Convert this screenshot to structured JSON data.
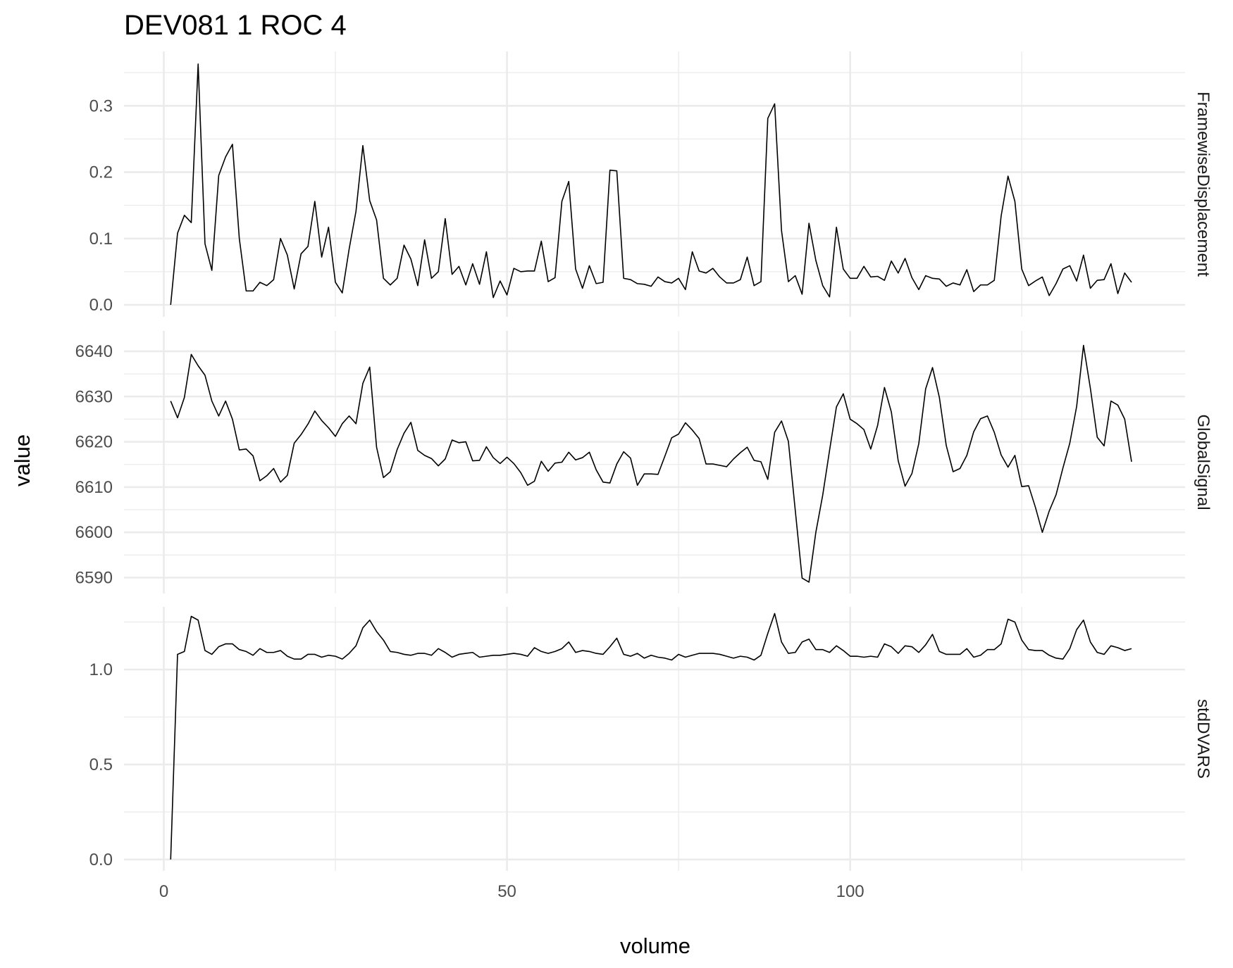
{
  "title": "DEV081  1  ROC  4",
  "chart_data": {
    "type": "line",
    "title": "DEV081  1  ROC  4",
    "xlabel": "volume",
    "ylabel": "value",
    "grid": true,
    "xlim": [
      -5.8,
      148.8
    ],
    "x_ticks": [
      0,
      50,
      100
    ],
    "x_tick_labels": [
      "0",
      "50",
      "100"
    ],
    "x_minor_ticks": [
      25,
      75,
      125
    ],
    "facets": [
      {
        "name": "FramewiseDisplacement",
        "ylim": [
          -0.018,
          0.382
        ],
        "y_ticks": [
          0,
          0.1,
          0.2,
          0.3
        ],
        "y_tick_labels": [
          "0.0",
          "0.1",
          "0.2",
          "0.3"
        ],
        "y_minor_ticks": [
          0.05,
          0.15,
          0.25,
          0.35
        ],
        "values": [
          0,
          0.108,
          0.135,
          0.124,
          0.363,
          0.092,
          0.052,
          0.195,
          0.223,
          0.242,
          0.1,
          0.021,
          0.021,
          0.034,
          0.029,
          0.038,
          0.1,
          0.075,
          0.024,
          0.077,
          0.088,
          0.156,
          0.072,
          0.117,
          0.034,
          0.018,
          0.084,
          0.141,
          0.24,
          0.157,
          0.128,
          0.04,
          0.03,
          0.04,
          0.09,
          0.069,
          0.029,
          0.098,
          0.04,
          0.05,
          0.13,
          0.046,
          0.058,
          0.03,
          0.062,
          0.031,
          0.08,
          0.011,
          0.036,
          0.015,
          0.055,
          0.05,
          0.051,
          0.051,
          0.096,
          0.035,
          0.041,
          0.156,
          0.186,
          0.054,
          0.025,
          0.059,
          0.032,
          0.034,
          0.203,
          0.202,
          0.04,
          0.038,
          0.032,
          0.031,
          0.028,
          0.042,
          0.035,
          0.033,
          0.04,
          0.023,
          0.08,
          0.051,
          0.048,
          0.055,
          0.042,
          0.033,
          0.033,
          0.038,
          0.072,
          0.029,
          0.035,
          0.281,
          0.303,
          0.112,
          0.035,
          0.044,
          0.016,
          0.123,
          0.067,
          0.029,
          0.012,
          0.117,
          0.054,
          0.04,
          0.04,
          0.058,
          0.042,
          0.043,
          0.037,
          0.066,
          0.048,
          0.07,
          0.041,
          0.023,
          0.044,
          0.04,
          0.039,
          0.028,
          0.033,
          0.03,
          0.053,
          0.02,
          0.03,
          0.03,
          0.037,
          0.134,
          0.194,
          0.156,
          0.054,
          0.029,
          0.036,
          0.042,
          0.014,
          0.032,
          0.054,
          0.059,
          0.036,
          0.075,
          0.025,
          0.037,
          0.038,
          0.062,
          0.017,
          0.048,
          0.034
        ]
      },
      {
        "name": "GlobalSignal",
        "ylim": [
          6586.5,
          6644.5
        ],
        "y_ticks": [
          6590,
          6600,
          6610,
          6620,
          6630,
          6640
        ],
        "y_tick_labels": [
          "6590",
          "6600",
          "6610",
          "6620",
          "6630",
          "6640"
        ],
        "y_minor_ticks": [
          6595,
          6605,
          6615,
          6625,
          6635
        ],
        "values": [
          6629,
          6625.3,
          6629.8,
          6639.3,
          6636.8,
          6634.7,
          6629,
          6625.7,
          6629,
          6625,
          6618.2,
          6618.4,
          6616.9,
          6611.4,
          6612.5,
          6614.1,
          6611.1,
          6612.6,
          6619.7,
          6621.6,
          6623.9,
          6626.8,
          6624.7,
          6623.1,
          6621.2,
          6624,
          6625.7,
          6624,
          6632.9,
          6636.5,
          6618.8,
          6612.1,
          6613.4,
          6618.3,
          6621.9,
          6624.3,
          6618.1,
          6617,
          6616.3,
          6614.7,
          6616.2,
          6620.4,
          6619.8,
          6620,
          6615.8,
          6615.9,
          6618.9,
          6616.5,
          6615.2,
          6616.6,
          6615.2,
          6613.2,
          6610.4,
          6611.3,
          6615.7,
          6613.5,
          6615.3,
          6615.5,
          6617.7,
          6616,
          6616.5,
          6617.7,
          6613.8,
          6611.1,
          6610.9,
          6615.1,
          6617.8,
          6616.4,
          6610.4,
          6612.9,
          6612.9,
          6612.8,
          6616.8,
          6620.9,
          6621.7,
          6624.2,
          6622.6,
          6620.7,
          6615.1,
          6615.1,
          6614.8,
          6614.5,
          6616.2,
          6617.6,
          6618.8,
          6615.9,
          6615.6,
          6611.7,
          6622.1,
          6624.6,
          6620.1,
          6604.9,
          6589.9,
          6589,
          6600,
          6608.2,
          6618.1,
          6627.7,
          6630.6,
          6625,
          6624,
          6622.7,
          6618.4,
          6623.6,
          6632,
          6626.6,
          6615.8,
          6610.2,
          6613,
          6619.6,
          6631.7,
          6636.4,
          6629.8,
          6619.2,
          6613.4,
          6614.1,
          6617,
          6622.2,
          6625.1,
          6625.7,
          6622.1,
          6617.1,
          6614.4,
          6617,
          6610.1,
          6610.3,
          6605.5,
          6600,
          6604.7,
          6608.3,
          6614.2,
          6619.7,
          6627.8,
          6641.3,
          6631.8,
          6621,
          6619.1,
          6629,
          6628.1,
          6625,
          6615.6
        ]
      },
      {
        "name": "stdDVARS",
        "ylim": [
          -0.06,
          1.33
        ],
        "y_ticks": [
          0,
          0.5,
          1
        ],
        "y_tick_labels": [
          "0.0",
          "0.5",
          "1.0"
        ],
        "y_minor_ticks": [
          0.25,
          0.75,
          1.25
        ],
        "values": [
          0,
          1.08,
          1.095,
          1.28,
          1.26,
          1.1,
          1.08,
          1.12,
          1.135,
          1.135,
          1.105,
          1.095,
          1.075,
          1.11,
          1.09,
          1.09,
          1.1,
          1.07,
          1.055,
          1.055,
          1.08,
          1.08,
          1.065,
          1.075,
          1.07,
          1.055,
          1.085,
          1.125,
          1.22,
          1.26,
          1.2,
          1.155,
          1.095,
          1.09,
          1.08,
          1.075,
          1.085,
          1.085,
          1.075,
          1.11,
          1.09,
          1.065,
          1.08,
          1.085,
          1.09,
          1.065,
          1.07,
          1.075,
          1.075,
          1.08,
          1.085,
          1.08,
          1.07,
          1.115,
          1.095,
          1.085,
          1.095,
          1.11,
          1.145,
          1.09,
          1.1,
          1.095,
          1.085,
          1.08,
          1.12,
          1.165,
          1.08,
          1.07,
          1.085,
          1.06,
          1.075,
          1.065,
          1.06,
          1.05,
          1.08,
          1.065,
          1.075,
          1.085,
          1.085,
          1.085,
          1.08,
          1.07,
          1.06,
          1.07,
          1.065,
          1.05,
          1.075,
          1.19,
          1.295,
          1.145,
          1.085,
          1.09,
          1.145,
          1.16,
          1.105,
          1.105,
          1.09,
          1.125,
          1.1,
          1.07,
          1.07,
          1.065,
          1.07,
          1.065,
          1.135,
          1.12,
          1.085,
          1.125,
          1.12,
          1.09,
          1.13,
          1.185,
          1.095,
          1.08,
          1.08,
          1.08,
          1.11,
          1.065,
          1.075,
          1.105,
          1.105,
          1.135,
          1.265,
          1.25,
          1.155,
          1.105,
          1.1,
          1.1,
          1.075,
          1.06,
          1.055,
          1.11,
          1.21,
          1.26,
          1.145,
          1.09,
          1.08,
          1.125,
          1.115,
          1.1,
          1.11
        ]
      }
    ]
  }
}
